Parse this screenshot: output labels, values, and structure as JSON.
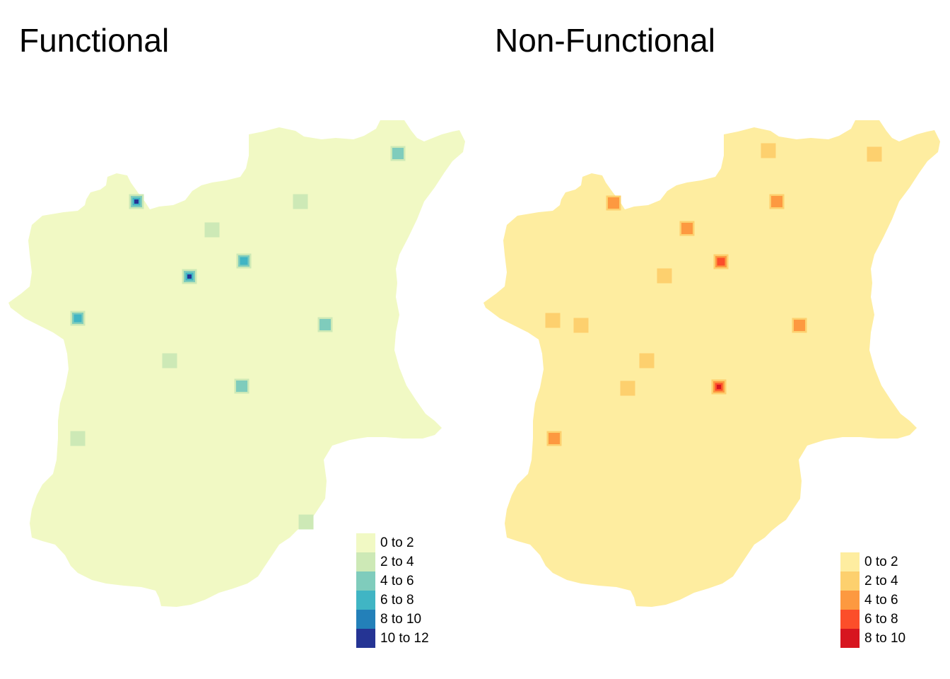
{
  "panels": [
    {
      "id": "functional",
      "title": "Functional",
      "base_color": "#f1f9c4",
      "legend": [
        {
          "label": "0 to 2",
          "color": "#f1f9c4"
        },
        {
          "label": "2 to 4",
          "color": "#cde9b6"
        },
        {
          "label": "4 to 6",
          "color": "#7fccbc"
        },
        {
          "label": "6 to 8",
          "color": "#40b5c4"
        },
        {
          "label": "8 to 10",
          "color": "#2380b9"
        },
        {
          "label": "10 to 12",
          "color": "#253494"
        }
      ],
      "hotspots": [
        {
          "name": "hotspot-1",
          "level": 5
        },
        {
          "name": "hotspot-2",
          "level": 5
        },
        {
          "name": "hotspot-3",
          "level": 3
        },
        {
          "name": "hotspot-4",
          "level": 3
        },
        {
          "name": "hotspot-5",
          "level": 2
        },
        {
          "name": "hotspot-6",
          "level": 2
        },
        {
          "name": "hotspot-7",
          "level": 2
        },
        {
          "name": "hotspot-8",
          "level": 1
        },
        {
          "name": "hotspot-9",
          "level": 1
        },
        {
          "name": "hotspot-10",
          "level": 1
        },
        {
          "name": "hotspot-11",
          "level": 1
        },
        {
          "name": "hotspot-12",
          "level": 1
        }
      ]
    },
    {
      "id": "nonfunctional",
      "title": "Non-Functional",
      "base_color": "#feeda0",
      "legend": [
        {
          "label": "0 to 2",
          "color": "#feeda0"
        },
        {
          "label": "2 to 4",
          "color": "#fdd06e"
        },
        {
          "label": "4 to 6",
          "color": "#fd9940"
        },
        {
          "label": "6 to 8",
          "color": "#fc4e2a"
        },
        {
          "label": "8 to 10",
          "color": "#d7151f"
        }
      ],
      "hotspots": [
        {
          "name": "hotspot-1",
          "level": 4
        },
        {
          "name": "hotspot-2",
          "level": 3
        },
        {
          "name": "hotspot-3",
          "level": 2
        },
        {
          "name": "hotspot-4",
          "level": 2
        },
        {
          "name": "hotspot-5",
          "level": 2
        },
        {
          "name": "hotspot-6",
          "level": 2
        },
        {
          "name": "hotspot-7",
          "level": 2
        },
        {
          "name": "hotspot-8",
          "level": 1
        },
        {
          "name": "hotspot-9",
          "level": 1
        },
        {
          "name": "hotspot-10",
          "level": 1
        },
        {
          "name": "hotspot-11",
          "level": 1
        },
        {
          "name": "hotspot-12",
          "level": 1
        },
        {
          "name": "hotspot-13",
          "level": 1
        },
        {
          "name": "hotspot-14",
          "level": 1
        }
      ]
    }
  ]
}
